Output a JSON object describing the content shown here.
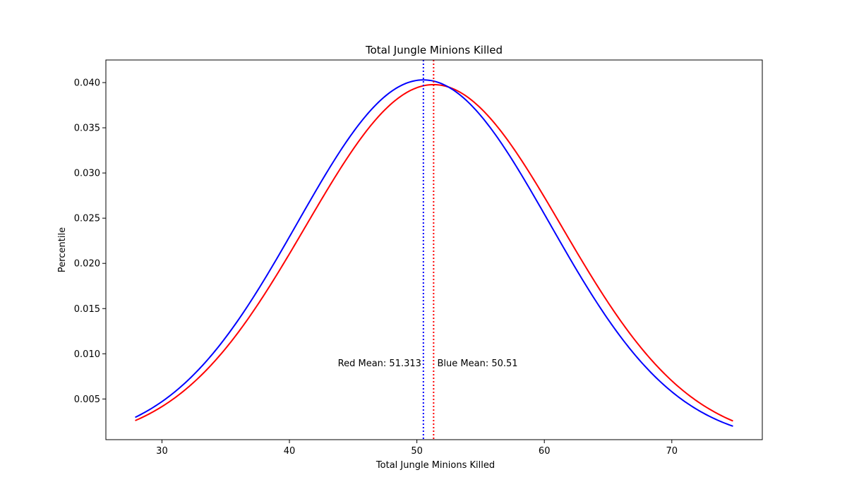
{
  "chart_data": {
    "type": "line",
    "title": "Total Jungle Minions Killed",
    "xlabel": "Total Jungle Minions Killed",
    "ylabel": "Percentile",
    "xlim": [
      25.6,
      77.1
    ],
    "ylim": [
      0.0005,
      0.0425
    ],
    "x_ticks": [
      30,
      40,
      50,
      60,
      70
    ],
    "y_ticks": [
      0.005,
      0.01,
      0.015,
      0.02,
      0.025,
      0.03,
      0.035,
      0.04
    ],
    "y_tick_labels": [
      "0.005",
      "0.010",
      "0.015",
      "0.020",
      "0.025",
      "0.030",
      "0.035",
      "0.040"
    ],
    "x_tick_labels": [
      "30",
      "40",
      "50",
      "60",
      "70"
    ],
    "x_range": [
      27.9,
      74.8
    ],
    "series": [
      {
        "color": "#ff0000",
        "distribution": "normal",
        "mean": 51.313,
        "std": 10.03
      },
      {
        "color": "#0000ff",
        "distribution": "normal",
        "mean": 50.51,
        "std": 9.9
      }
    ],
    "mean_lines": [
      {
        "x": 51.313,
        "color": "#ff0000",
        "style": "dotted"
      },
      {
        "x": 50.51,
        "color": "#0000ff",
        "style": "dotted"
      }
    ],
    "annotations": [
      {
        "text": "Red Mean: 51.313",
        "x": 43.8,
        "y": 0.0086
      },
      {
        "text": "Blue Mean: 50.51",
        "x": 51.6,
        "y": 0.0086
      }
    ],
    "grid": false,
    "legend": "none"
  }
}
